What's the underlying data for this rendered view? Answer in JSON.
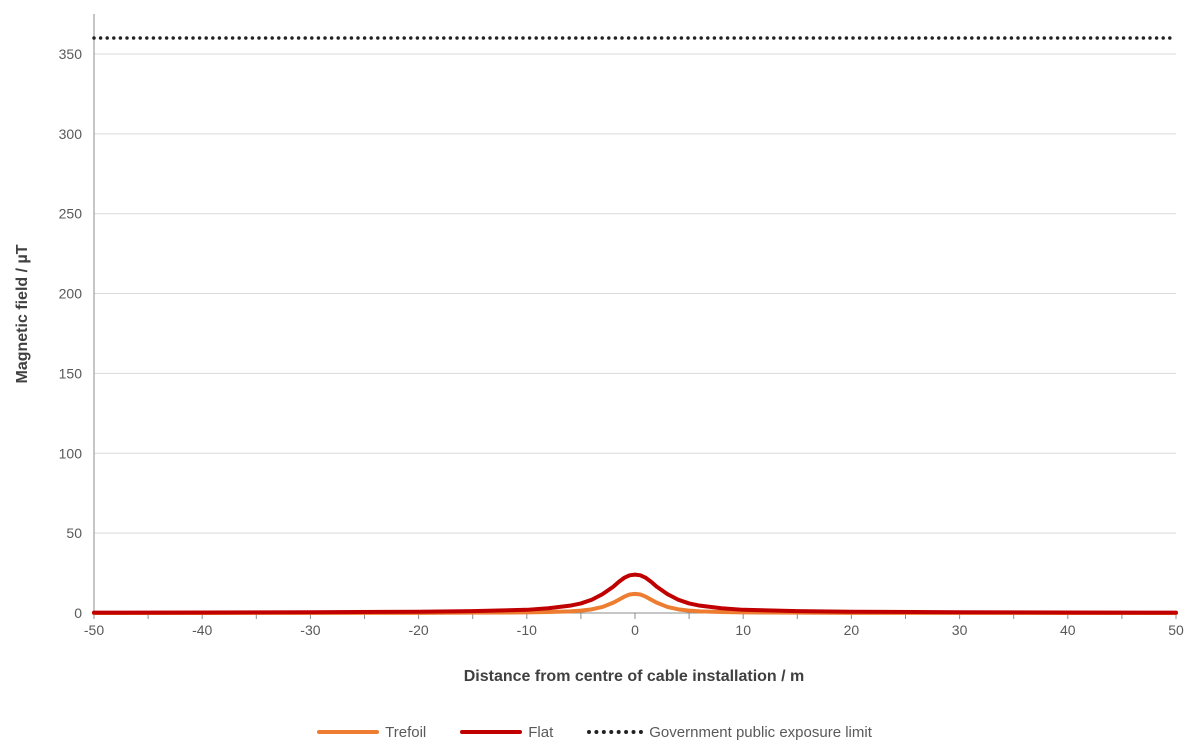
{
  "chart_data": {
    "type": "line",
    "xlabel": "Distance from centre of cable installation / m",
    "ylabel": "Magnetic field / µT",
    "xlim": [
      -50,
      50
    ],
    "ylim": [
      0,
      360
    ],
    "xticks": [
      -50,
      -40,
      -30,
      -20,
      -10,
      0,
      10,
      20,
      30,
      40,
      50
    ],
    "yticks": [
      0,
      50,
      100,
      150,
      200,
      250,
      300,
      350
    ],
    "grid": "horizontal",
    "legend_position": "bottom",
    "x": [
      -50,
      -40,
      -30,
      -20,
      -15,
      -10,
      -8,
      -6,
      -5,
      -4,
      -3,
      -2,
      -1.5,
      -1,
      -0.5,
      0,
      0.5,
      1,
      1.5,
      2,
      3,
      4,
      5,
      6,
      8,
      10,
      15,
      20,
      30,
      40,
      50
    ],
    "series": [
      {
        "name": "Trefoil",
        "color": "#ED7D31",
        "style": "solid",
        "values": [
          0.0,
          0.0,
          0.1,
          0.1,
          0.2,
          0.4,
          0.6,
          1.0,
          1.5,
          2.3,
          3.8,
          6.5,
          8.3,
          10.2,
          11.6,
          12.0,
          11.6,
          10.2,
          8.3,
          6.5,
          3.8,
          2.3,
          1.5,
          1.0,
          0.6,
          0.4,
          0.2,
          0.1,
          0.1,
          0.0,
          0.0
        ]
      },
      {
        "name": "Flat",
        "color": "#C00000",
        "style": "solid",
        "values": [
          0.2,
          0.3,
          0.5,
          0.8,
          1.2,
          2.0,
          3.0,
          4.6,
          6.0,
          8.3,
          11.8,
          16.5,
          19.5,
          22.0,
          23.6,
          24.0,
          23.6,
          22.0,
          19.5,
          16.5,
          11.8,
          8.3,
          6.0,
          4.6,
          3.0,
          2.0,
          1.2,
          0.8,
          0.5,
          0.3,
          0.2
        ]
      },
      {
        "name": "Government public exposure limit",
        "color": "#222222",
        "style": "dotted",
        "values": [
          360,
          360,
          360,
          360,
          360,
          360,
          360,
          360,
          360,
          360,
          360,
          360,
          360,
          360,
          360,
          360,
          360,
          360,
          360,
          360,
          360,
          360,
          360,
          360,
          360,
          360,
          360,
          360,
          360,
          360,
          360
        ]
      }
    ]
  }
}
